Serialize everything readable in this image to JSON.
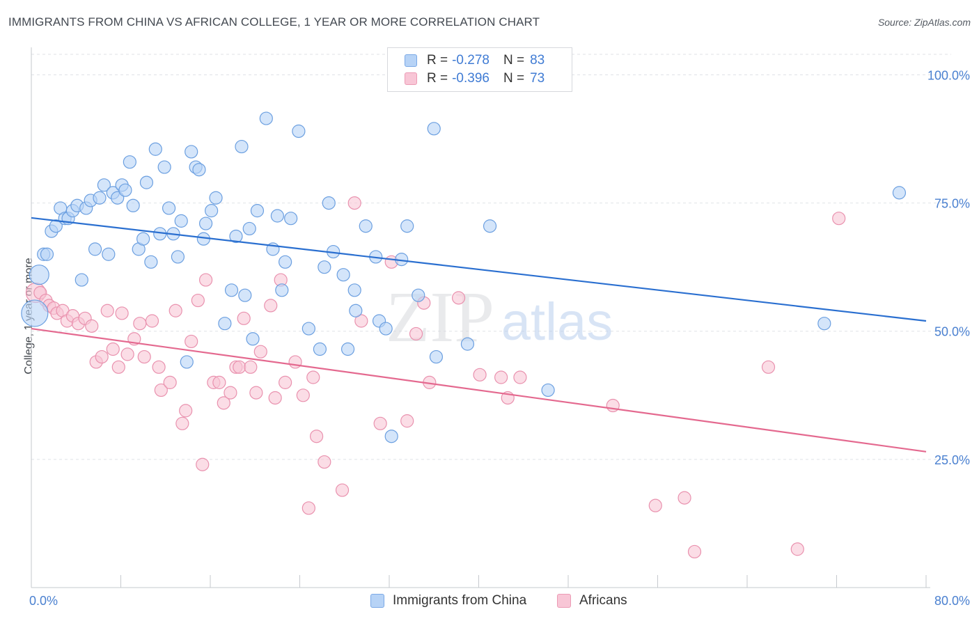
{
  "title": "IMMIGRANTS FROM CHINA VS AFRICAN COLLEGE, 1 YEAR OR MORE CORRELATION CHART",
  "source": "Source: ZipAtlas.com",
  "watermark": {
    "zip": "ZIP",
    "atlas": "atlas"
  },
  "legend": {
    "rows": [
      {
        "r_label": "R =",
        "r_value": "-0.278",
        "n_label": "N =",
        "n_value": "83",
        "fill": "#b7d3f6",
        "stroke": "#7aa8e6"
      },
      {
        "r_label": "R =",
        "r_value": "-0.396",
        "n_label": "N =",
        "n_value": "73",
        "fill": "#f8c6d6",
        "stroke": "#ec9ab4"
      }
    ]
  },
  "colors": {
    "china_fill": "#b7d3f6",
    "china_stroke": "#6b9fe0",
    "china_line": "#2a6fd0",
    "africa_fill": "#f8c6d6",
    "africa_stroke": "#e991ae",
    "africa_line": "#e4698f",
    "tick_label": "#4a80d0",
    "grid": "#dfe2e6"
  },
  "chart_data": {
    "type": "scatter",
    "title": "IMMIGRANTS FROM CHINA VS AFRICAN COLLEGE, 1 YEAR OR MORE CORRELATION CHART",
    "xlabel": "",
    "ylabel": "College, 1 year or more",
    "xlim": [
      0,
      80
    ],
    "ylim": [
      0,
      104
    ],
    "x_tick_labels": [
      "0.0%",
      "80.0%"
    ],
    "y_ticks": [
      25,
      50,
      75,
      100
    ],
    "y_tick_labels": [
      "25.0%",
      "50.0%",
      "75.0%",
      "100.0%"
    ],
    "grid": true,
    "legend_position": "top-center",
    "series": [
      {
        "name": "Immigrants from China",
        "trend": [
          [
            0,
            72.1
          ],
          [
            80,
            52.0
          ]
        ],
        "points": [
          [
            0.3,
            53.5,
            3
          ],
          [
            0.7,
            61,
            2
          ],
          [
            1.1,
            65,
            1
          ],
          [
            1.4,
            65,
            1
          ],
          [
            1.8,
            69.5,
            1
          ],
          [
            2.2,
            70.5,
            1
          ],
          [
            2.6,
            74,
            1
          ],
          [
            3.0,
            72,
            1
          ],
          [
            3.3,
            72,
            1
          ],
          [
            3.7,
            73.5,
            1
          ],
          [
            4.1,
            74.5,
            1
          ],
          [
            4.5,
            60,
            1
          ],
          [
            4.9,
            74,
            1
          ],
          [
            5.3,
            75.5,
            1
          ],
          [
            5.7,
            66,
            1
          ],
          [
            6.1,
            76,
            1
          ],
          [
            6.5,
            78.5,
            1
          ],
          [
            6.9,
            65,
            1
          ],
          [
            7.3,
            77,
            1
          ],
          [
            7.7,
            76,
            1
          ],
          [
            8.1,
            78.5,
            1
          ],
          [
            8.4,
            77.5,
            1
          ],
          [
            8.8,
            83,
            1
          ],
          [
            9.1,
            74.5,
            1
          ],
          [
            9.6,
            66,
            1
          ],
          [
            10.0,
            68,
            1
          ],
          [
            10.3,
            79,
            1
          ],
          [
            10.7,
            63.5,
            1
          ],
          [
            11.1,
            85.5,
            1
          ],
          [
            11.5,
            69,
            1
          ],
          [
            11.9,
            82,
            1
          ],
          [
            12.3,
            74,
            1
          ],
          [
            12.7,
            69,
            1
          ],
          [
            13.1,
            64.5,
            1
          ],
          [
            13.4,
            71.5,
            1
          ],
          [
            13.9,
            44,
            1
          ],
          [
            14.3,
            85,
            1
          ],
          [
            14.7,
            82,
            1
          ],
          [
            15.0,
            81.5,
            1
          ],
          [
            15.4,
            68,
            1
          ],
          [
            15.6,
            71,
            1
          ],
          [
            16.1,
            73.5,
            1
          ],
          [
            16.5,
            76,
            1
          ],
          [
            17.3,
            51.5,
            1
          ],
          [
            17.9,
            58,
            1
          ],
          [
            18.3,
            68.5,
            1
          ],
          [
            18.8,
            86,
            1
          ],
          [
            19.1,
            57,
            1
          ],
          [
            19.5,
            70,
            1
          ],
          [
            19.8,
            48.5,
            1
          ],
          [
            20.2,
            73.5,
            1
          ],
          [
            21.0,
            91.5,
            1
          ],
          [
            21.6,
            66,
            1
          ],
          [
            22.0,
            72.5,
            1
          ],
          [
            22.4,
            58,
            1
          ],
          [
            22.7,
            63.5,
            1
          ],
          [
            23.2,
            72,
            1
          ],
          [
            23.9,
            89,
            1
          ],
          [
            24.8,
            50.5,
            1
          ],
          [
            25.8,
            46.5,
            1
          ],
          [
            26.2,
            62.5,
            1
          ],
          [
            26.6,
            75,
            1
          ],
          [
            27.0,
            65.5,
            1
          ],
          [
            27.9,
            61,
            1
          ],
          [
            28.3,
            46.5,
            1
          ],
          [
            28.9,
            58,
            1
          ],
          [
            29.0,
            54,
            1
          ],
          [
            29.9,
            70.5,
            1
          ],
          [
            30.8,
            64.5,
            1
          ],
          [
            31.1,
            52,
            1
          ],
          [
            31.7,
            50.5,
            1
          ],
          [
            32.2,
            29.5,
            1
          ],
          [
            33.1,
            64,
            1
          ],
          [
            33.6,
            70.5,
            1
          ],
          [
            34.6,
            57,
            1
          ],
          [
            36.0,
            89.5,
            1
          ],
          [
            36.2,
            45,
            1
          ],
          [
            39.0,
            47.5,
            1
          ],
          [
            41.0,
            70.5,
            1
          ],
          [
            46.2,
            38.5,
            1
          ],
          [
            70.9,
            51.5,
            1
          ],
          [
            77.6,
            77,
            1
          ]
        ]
      },
      {
        "name": "Africans",
        "trend": [
          [
            0,
            50.5
          ],
          [
            80,
            26.5
          ]
        ],
        "points": [
          [
            0.4,
            57.5,
            2
          ],
          [
            0.8,
            57.5,
            1
          ],
          [
            1.3,
            56,
            1
          ],
          [
            1.6,
            55,
            1
          ],
          [
            2.0,
            54.5,
            1
          ],
          [
            2.3,
            53.5,
            1
          ],
          [
            2.8,
            54,
            1
          ],
          [
            3.2,
            52,
            1
          ],
          [
            3.7,
            53,
            1
          ],
          [
            4.2,
            51.5,
            1
          ],
          [
            4.8,
            52.5,
            1
          ],
          [
            5.4,
            51,
            1
          ],
          [
            5.8,
            44,
            1
          ],
          [
            6.3,
            45,
            1
          ],
          [
            6.8,
            54,
            1
          ],
          [
            7.3,
            46.5,
            1
          ],
          [
            7.8,
            43,
            1
          ],
          [
            8.1,
            53.5,
            1
          ],
          [
            8.6,
            45.5,
            1
          ],
          [
            9.2,
            48.5,
            1
          ],
          [
            9.7,
            51.5,
            1
          ],
          [
            10.1,
            45,
            1
          ],
          [
            10.8,
            52,
            1
          ],
          [
            11.4,
            43,
            1
          ],
          [
            11.6,
            38.5,
            1
          ],
          [
            12.4,
            40,
            1
          ],
          [
            12.9,
            54,
            1
          ],
          [
            13.5,
            32,
            1
          ],
          [
            13.8,
            34.5,
            1
          ],
          [
            14.3,
            48,
            1
          ],
          [
            14.9,
            56,
            1
          ],
          [
            15.3,
            24,
            1
          ],
          [
            15.6,
            60,
            1
          ],
          [
            16.3,
            40,
            1
          ],
          [
            16.8,
            40,
            1
          ],
          [
            17.2,
            36,
            1
          ],
          [
            17.8,
            38,
            1
          ],
          [
            18.3,
            43,
            1
          ],
          [
            18.6,
            43,
            1
          ],
          [
            19.0,
            52.5,
            1
          ],
          [
            19.6,
            43,
            1
          ],
          [
            20.1,
            38,
            1
          ],
          [
            20.5,
            46,
            1
          ],
          [
            21.4,
            55,
            1
          ],
          [
            21.8,
            37,
            1
          ],
          [
            22.3,
            60,
            1
          ],
          [
            22.7,
            40,
            1
          ],
          [
            23.6,
            44,
            1
          ],
          [
            24.3,
            37.5,
            1
          ],
          [
            24.8,
            15.5,
            1
          ],
          [
            25.2,
            41,
            1
          ],
          [
            25.5,
            29.5,
            1
          ],
          [
            26.2,
            24.5,
            1
          ],
          [
            27.8,
            19,
            1
          ],
          [
            28.9,
            75,
            1
          ],
          [
            29.5,
            52,
            1
          ],
          [
            31.2,
            32,
            1
          ],
          [
            32.2,
            63.5,
            1
          ],
          [
            33.6,
            32.5,
            1
          ],
          [
            34.4,
            49.5,
            1
          ],
          [
            35.1,
            55.5,
            1
          ],
          [
            35.6,
            40,
            1
          ],
          [
            38.2,
            56.5,
            1
          ],
          [
            40.1,
            41.5,
            1
          ],
          [
            42.0,
            41,
            1
          ],
          [
            42.6,
            37,
            1
          ],
          [
            43.7,
            41,
            1
          ],
          [
            52.0,
            35.5,
            1
          ],
          [
            55.8,
            16,
            1
          ],
          [
            58.4,
            17.5,
            1
          ],
          [
            59.3,
            7,
            1
          ],
          [
            65.9,
            43,
            1
          ],
          [
            68.5,
            7.5,
            1
          ],
          [
            72.2,
            72,
            1
          ]
        ]
      }
    ]
  },
  "bottom_legend": [
    {
      "label": "Immigrants from China"
    },
    {
      "label": "Africans"
    }
  ]
}
